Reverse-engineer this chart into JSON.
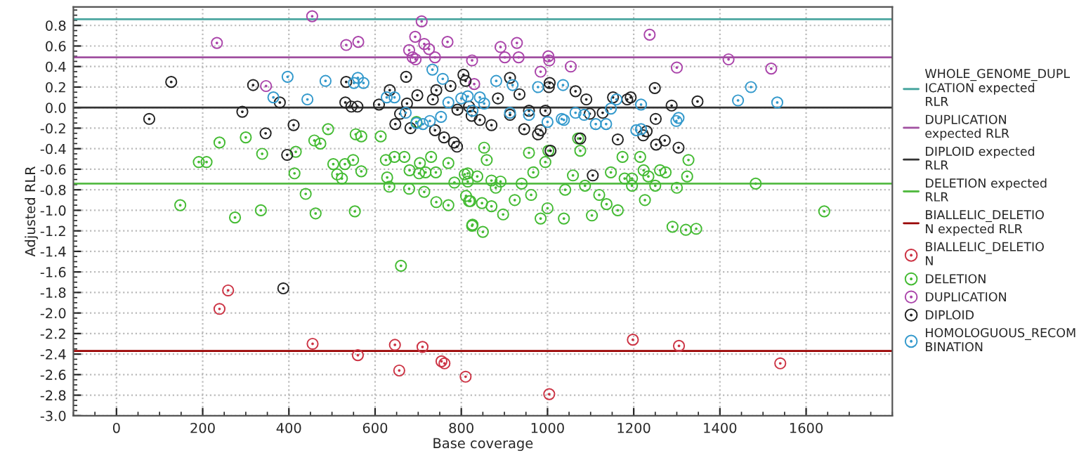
{
  "chart_data": {
    "type": "scatter",
    "xlabel": "Base coverage",
    "ylabel": "Adjusted RLR",
    "xlim": [
      -100,
      1800
    ],
    "xticks": [
      0,
      200,
      400,
      600,
      800,
      1000,
      1200,
      1400,
      1600
    ],
    "ylim": [
      -3.0,
      0.98
    ],
    "yticks": [
      {
        "value": 0.8,
        "label": "0.8"
      },
      {
        "value": 0.6,
        "label": "0.6"
      },
      {
        "value": 0.4,
        "label": "0.4"
      },
      {
        "value": 0.2,
        "label": "0.2"
      },
      {
        "value": 0.0,
        "label": "0.0"
      },
      {
        "value": -0.2,
        "label": "-0.2"
      },
      {
        "value": -0.4,
        "label": "-0.4"
      },
      {
        "value": -0.6,
        "label": "-0.6"
      },
      {
        "value": -0.8,
        "label": "-0.8"
      },
      {
        "value": -1.0,
        "label": "-1.0"
      },
      {
        "value": -1.2,
        "label": "-1.2"
      },
      {
        "value": -1.4,
        "label": "-1.4"
      },
      {
        "value": -1.6,
        "label": "-1.6"
      },
      {
        "value": -1.8,
        "label": "-1.8"
      },
      {
        "value": -2.0,
        "label": "-2.0"
      },
      {
        "value": -2.2,
        "label": "-2.2"
      },
      {
        "value": -2.4,
        "label": "-2.4"
      },
      {
        "value": -2.6,
        "label": "-2.6"
      },
      {
        "value": -2.8,
        "label": "-2.8"
      },
      {
        "value": -3.0,
        "label": "-3.0"
      }
    ],
    "grid": true,
    "legend": "right",
    "marker": "circle",
    "ref_lines": [
      {
        "axis": "y",
        "value": 0.86,
        "label": "WHOLE_GENOME_DUPLICATION expected RLR",
        "color": "#4aa6a0"
      },
      {
        "axis": "y",
        "value": 0.49,
        "label": "DUPLICATION expected RLR",
        "color": "#a050a0"
      },
      {
        "axis": "y",
        "value": 0.0,
        "label": "DIPLOID expected RLR",
        "color": "#333333"
      },
      {
        "axis": "y",
        "value": -0.74,
        "label": "DELETION expected RLR",
        "color": "#55bb44"
      },
      {
        "axis": "y",
        "value": -2.37,
        "label": "BIALLELIC_DELETION expected RLR",
        "color": "#990000"
      }
    ],
    "series": [
      {
        "name": "BIALLELIC_DELETION",
        "color": "#cc3344",
        "x": [
          259,
          239,
          455,
          560,
          646,
          656,
          710,
          754,
          761,
          810,
          1198,
          1305,
          1004,
          1540
        ],
        "values": [
          -1.78,
          -1.96,
          -2.3,
          -2.41,
          -2.31,
          -2.56,
          -2.33,
          -2.47,
          -2.49,
          -2.62,
          -2.26,
          -2.32,
          -2.79,
          -2.49
        ]
      },
      {
        "name": "DELETION",
        "color": "#44bb33",
        "x": [
          660,
          148,
          239,
          300,
          191,
          209,
          275,
          338,
          335,
          416,
          413,
          439,
          459,
          473,
          491,
          462,
          503,
          512,
          523,
          530,
          549,
          555,
          568,
          568,
          553,
          613,
          625,
          628,
          633,
          645,
          668,
          679,
          680,
          696,
          704,
          702,
          714,
          717,
          730,
          741,
          742,
          770,
          770,
          784,
          808,
          811,
          818,
          825,
          815,
          853,
          859,
          815,
          837,
          870,
          891,
          880,
          821,
          848,
          826,
          850,
          870,
          897,
          924,
          957,
          1002,
          995,
          967,
          940,
          962,
          1000,
          984,
          1038,
          1041,
          1059,
          1071,
          1076,
          1087,
          1103,
          1120,
          1137,
          1163,
          1147,
          1174,
          1179,
          1196,
          1215,
          1223,
          1226,
          1250,
          1261,
          1274,
          1290,
          1321,
          1345,
          1300,
          1324,
          1327,
          1483,
          1642,
          1196,
          1234
        ],
        "values": [
          -1.54,
          -0.95,
          -0.34,
          -0.29,
          -0.53,
          -0.53,
          -1.07,
          -0.45,
          -1.0,
          -0.43,
          -0.64,
          -0.84,
          -0.32,
          -0.35,
          -0.21,
          -1.03,
          -0.55,
          -0.65,
          -0.69,
          -0.55,
          -0.51,
          -0.26,
          -0.28,
          -0.62,
          -1.01,
          -0.28,
          -0.51,
          -0.68,
          -0.77,
          -0.48,
          -0.48,
          -0.79,
          -0.61,
          -0.14,
          -0.54,
          -0.64,
          -0.82,
          -0.63,
          -0.48,
          -0.63,
          -0.92,
          -0.54,
          -0.95,
          -0.73,
          -0.65,
          -0.86,
          -0.91,
          -1.15,
          -0.72,
          -0.39,
          -0.51,
          -0.64,
          -0.67,
          -0.71,
          -0.72,
          -0.78,
          -0.91,
          -0.93,
          -1.14,
          -1.21,
          -0.96,
          -1.04,
          -0.9,
          -0.44,
          -0.42,
          -0.53,
          -0.63,
          -0.74,
          -0.85,
          -0.98,
          -1.08,
          -1.08,
          -0.8,
          -0.66,
          -0.3,
          -0.42,
          -0.76,
          -1.05,
          -0.85,
          -0.94,
          -1.0,
          -0.63,
          -0.48,
          -0.69,
          -0.76,
          -0.48,
          -0.61,
          -0.9,
          -0.76,
          -0.61,
          -0.63,
          -1.16,
          -1.19,
          -1.18,
          -0.78,
          -0.67,
          -0.51,
          -0.74,
          -1.01,
          -0.69,
          -0.67
        ]
      },
      {
        "name": "DUPLICATION",
        "color": "#aa44aa",
        "x": [
          454,
          233,
          533,
          561,
          708,
          693,
          714,
          725,
          679,
          687,
          694,
          739,
          768,
          347,
          825,
          891,
          929,
          901,
          933,
          1002,
          1004,
          1054,
          984,
          830,
          1237,
          1300,
          1420,
          1519
        ],
        "values": [
          0.89,
          0.63,
          0.61,
          0.64,
          0.84,
          0.69,
          0.62,
          0.57,
          0.56,
          0.49,
          0.47,
          0.49,
          0.64,
          0.21,
          0.46,
          0.59,
          0.63,
          0.49,
          0.49,
          0.5,
          0.46,
          0.4,
          0.35,
          0.23,
          0.71,
          0.39,
          0.47,
          0.38
        ]
      },
      {
        "name": "DIPLOID",
        "color": "#222222",
        "x": [
          387,
          127,
          76,
          292,
          317,
          346,
          411,
          396,
          379,
          533,
          531,
          545,
          559,
          609,
          634,
          672,
          674,
          658,
          647,
          682,
          698,
          734,
          742,
          739,
          760,
          783,
          790,
          775,
          805,
          791,
          818,
          824,
          810,
          913,
          935,
          1005,
          1003,
          1065,
          1090,
          1152,
          1185,
          1193,
          1249,
          1348,
          1288,
          870,
          946,
          978,
          984,
          913,
          843,
          1128,
          1098,
          1163,
          1230,
          1222,
          1251,
          1252,
          1272,
          1304,
          1076,
          1007,
          1105,
          995,
          885,
          957
        ],
        "values": [
          -1.76,
          0.25,
          -0.11,
          -0.04,
          0.22,
          -0.25,
          -0.17,
          -0.46,
          0.05,
          0.25,
          0.05,
          0.01,
          0.01,
          0.03,
          0.17,
          0.3,
          0.04,
          -0.06,
          -0.16,
          -0.2,
          0.12,
          0.08,
          0.17,
          -0.22,
          -0.29,
          -0.34,
          -0.38,
          0.21,
          0.32,
          -0.02,
          0.01,
          -0.08,
          0.26,
          0.29,
          0.13,
          0.24,
          0.2,
          0.16,
          0.08,
          0.1,
          0.08,
          0.1,
          0.19,
          0.06,
          0.02,
          -0.17,
          -0.21,
          -0.26,
          -0.22,
          -0.07,
          -0.12,
          -0.05,
          -0.06,
          -0.31,
          -0.23,
          -0.27,
          -0.11,
          -0.36,
          -0.32,
          -0.39,
          -0.3,
          -0.42,
          -0.66,
          -0.03,
          0.09,
          -0.03
        ]
      },
      {
        "name": "HOMOLOGUOUS_RECOMBINATION",
        "color": "#3399cc",
        "x": [
          397,
          364,
          443,
          485,
          560,
          551,
          573,
          627,
          645,
          671,
          733,
          757,
          770,
          711,
          727,
          753,
          800,
          696,
          881,
          919,
          815,
          843,
          853,
          826,
          978,
          1036,
          1000,
          1038,
          1065,
          1085,
          1112,
          1136,
          1147,
          1217,
          1206,
          1217,
          1304,
          1299,
          1442,
          1472,
          1533,
          1160,
          913,
          957,
          1033
        ],
        "values": [
          0.3,
          0.1,
          0.08,
          0.26,
          0.29,
          0.24,
          0.24,
          0.1,
          0.1,
          -0.05,
          0.37,
          0.28,
          0.05,
          -0.16,
          -0.13,
          -0.09,
          0.09,
          -0.15,
          0.26,
          0.22,
          0.11,
          0.1,
          0.04,
          -0.03,
          0.2,
          0.22,
          -0.14,
          -0.12,
          -0.05,
          -0.07,
          -0.16,
          -0.16,
          -0.01,
          0.03,
          -0.22,
          -0.21,
          -0.1,
          -0.13,
          0.07,
          0.2,
          0.05,
          0.08,
          -0.05,
          -0.07,
          -0.11
        ]
      }
    ]
  }
}
